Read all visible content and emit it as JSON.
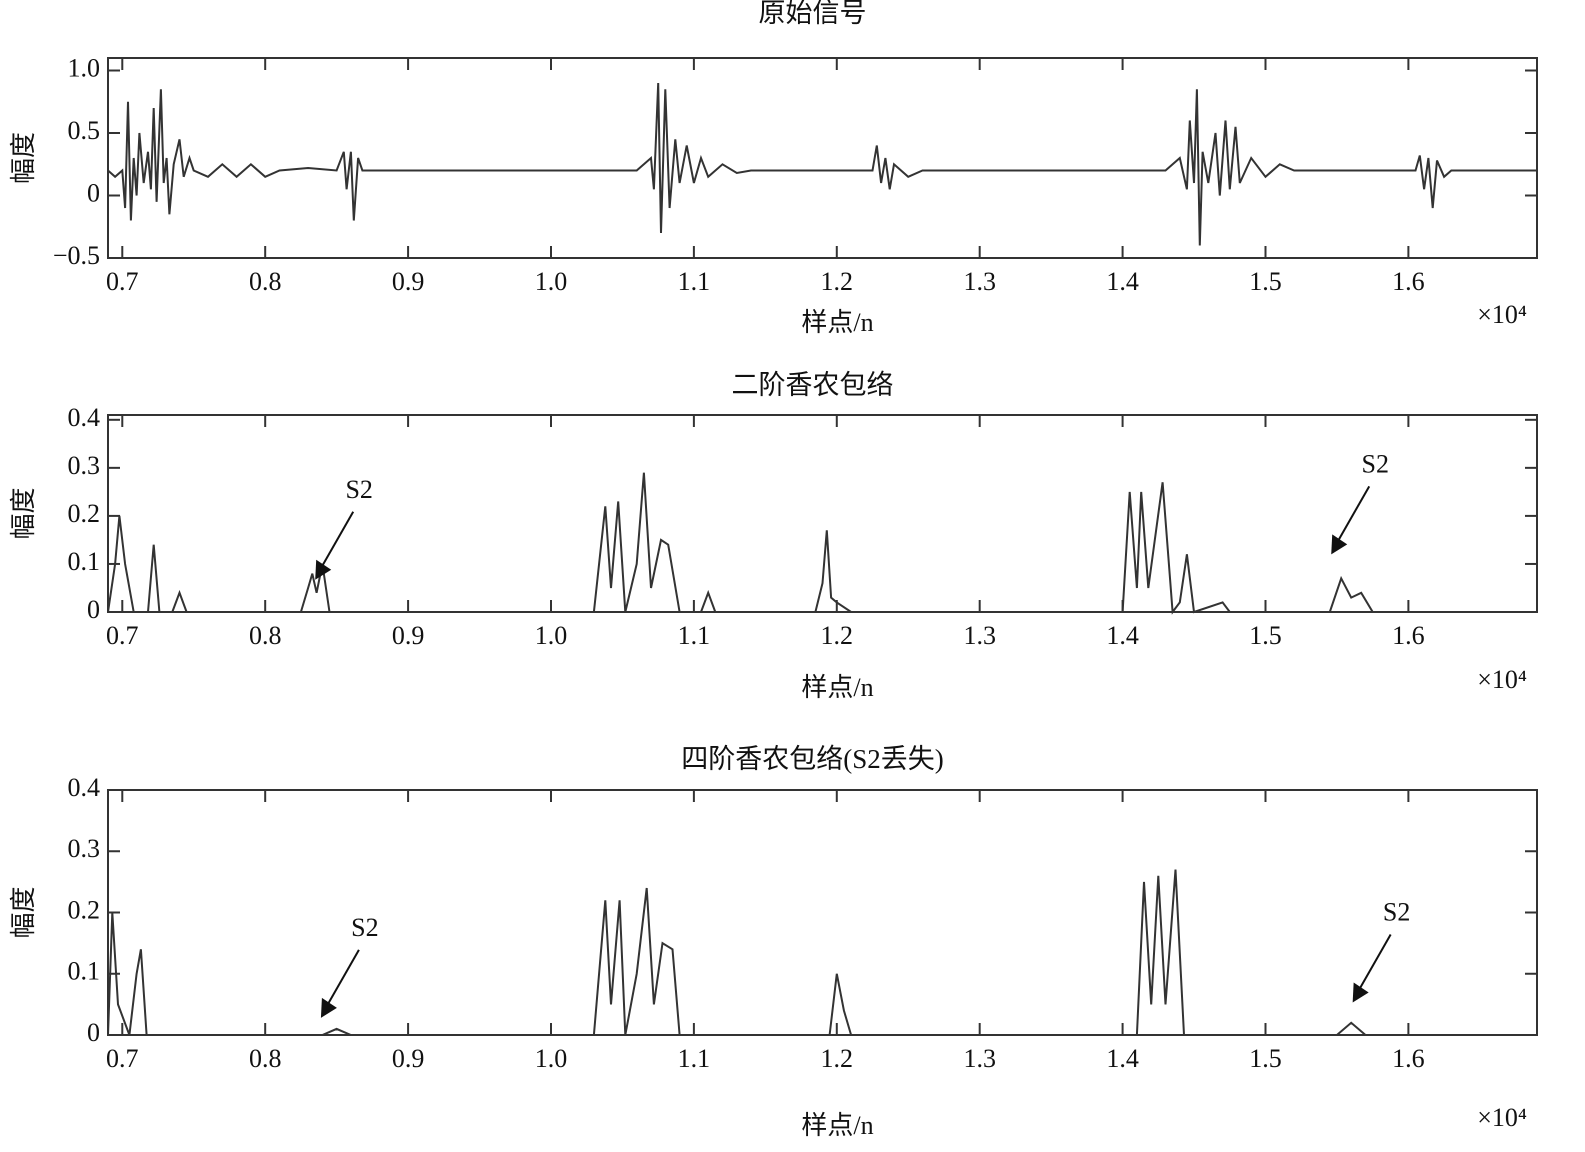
{
  "chart_data": [
    {
      "type": "line",
      "title": "原始信号",
      "xlabel": "样点/n",
      "ylabel": "幅度",
      "x_multiplier_label": "×10⁴",
      "xlim": [
        0.69,
        1.69
      ],
      "ylim": [
        -0.5,
        1.1
      ],
      "xticks": [
        0.7,
        0.8,
        0.9,
        {
          "value": 1,
          "label": "1.0"
        },
        1.1,
        1.2,
        1.3,
        1.4,
        1.5,
        1.6
      ],
      "yticks": [
        {
          "value": 1,
          "label": "1.0"
        },
        0.5,
        0,
        {
          "value": -0.5,
          "label": "−0.5"
        }
      ],
      "x": [
        0.69,
        0.695,
        0.7,
        0.702,
        0.704,
        0.706,
        0.708,
        0.71,
        0.712,
        0.715,
        0.718,
        0.72,
        0.722,
        0.724,
        0.727,
        0.729,
        0.731,
        0.733,
        0.736,
        0.74,
        0.743,
        0.747,
        0.75,
        0.76,
        0.77,
        0.78,
        0.79,
        0.8,
        0.81,
        0.83,
        0.85,
        0.855,
        0.857,
        0.86,
        0.862,
        0.865,
        0.868,
        1.06,
        1.07,
        1.072,
        1.075,
        1.077,
        1.08,
        1.083,
        1.087,
        1.09,
        1.095,
        1.1,
        1.105,
        1.11,
        1.12,
        1.13,
        1.14,
        1.225,
        1.228,
        1.231,
        1.234,
        1.237,
        1.24,
        1.25,
        1.26,
        1.43,
        1.44,
        1.445,
        1.447,
        1.45,
        1.452,
        1.454,
        1.456,
        1.46,
        1.465,
        1.468,
        1.472,
        1.475,
        1.479,
        1.482,
        1.49,
        1.5,
        1.51,
        1.52,
        1.605,
        1.608,
        1.611,
        1.614,
        1.617,
        1.62,
        1.625,
        1.63,
        1.69
      ],
      "series": [
        {
          "color": "#333333",
          "values": [
            0.2,
            0.15,
            0.2,
            -0.1,
            0.75,
            -0.2,
            0.3,
            0,
            0.5,
            0.1,
            0.35,
            0.05,
            0.7,
            -0.05,
            0.85,
            0.1,
            0.3,
            -0.15,
            0.25,
            0.45,
            0.15,
            0.3,
            0.2,
            0.15,
            0.25,
            0.15,
            0.25,
            0.15,
            0.2,
            0.22,
            0.2,
            0.35,
            0.05,
            0.35,
            -0.2,
            0.3,
            0.2,
            0.2,
            0.3,
            0.05,
            0.9,
            -0.3,
            0.85,
            -0.1,
            0.45,
            0.1,
            0.4,
            0.1,
            0.3,
            0.15,
            0.25,
            0.18,
            0.2,
            0.2,
            0.4,
            0.1,
            0.3,
            0.05,
            0.25,
            0.15,
            0.2,
            0.2,
            0.3,
            0.05,
            0.6,
            0.1,
            0.85,
            -0.4,
            0.35,
            0.1,
            0.5,
            0,
            0.6,
            0.05,
            0.55,
            0.1,
            0.3,
            0.15,
            0.25,
            0.2,
            0.2,
            0.32,
            0.05,
            0.3,
            -0.1,
            0.28,
            0.15,
            0.2,
            0.2
          ]
        }
      ]
    },
    {
      "type": "line",
      "title": "二阶香农包络",
      "xlabel": "样点/n",
      "ylabel": "幅度",
      "x_multiplier_label": "×10⁴",
      "xlim": [
        0.69,
        1.69
      ],
      "ylim": [
        0,
        0.41
      ],
      "xticks": [
        0.7,
        0.8,
        0.9,
        {
          "value": 1,
          "label": "1.0"
        },
        1.1,
        1.2,
        1.3,
        1.4,
        1.5,
        1.6
      ],
      "yticks": [
        0,
        0.1,
        0.2,
        0.3,
        0.4
      ],
      "annotations": [
        {
          "text": "S2",
          "x": 0.835,
          "y": 0.067
        },
        {
          "text": "S2",
          "x": 1.546,
          "y": 0.12
        }
      ],
      "x": [
        0.69,
        0.695,
        0.698,
        0.702,
        0.708,
        0.718,
        0.722,
        0.726,
        0.735,
        0.74,
        0.745,
        0.825,
        0.83,
        0.833,
        0.836,
        0.84,
        0.845,
        1.03,
        1.038,
        1.042,
        1.047,
        1.052,
        1.06,
        1.065,
        1.07,
        1.077,
        1.082,
        1.09,
        1.105,
        1.11,
        1.115,
        1.185,
        1.19,
        1.193,
        1.196,
        1.2,
        1.21,
        1.4,
        1.405,
        1.41,
        1.413,
        1.418,
        1.428,
        1.435,
        1.44,
        1.445,
        1.45,
        1.47,
        1.475,
        1.545,
        1.553,
        1.56,
        1.567,
        1.575,
        1.6
      ],
      "series": [
        {
          "color": "#333333",
          "values": [
            0,
            0.1,
            0.2,
            0.1,
            0,
            0,
            0.14,
            0,
            0,
            0.04,
            0,
            0,
            0.05,
            0.08,
            0.04,
            0.1,
            0,
            0,
            0.22,
            0.05,
            0.23,
            0,
            0.1,
            0.29,
            0.05,
            0.15,
            0.14,
            0,
            0,
            0.04,
            0,
            0,
            0.06,
            0.17,
            0.03,
            0.02,
            0,
            0,
            0.25,
            0.05,
            0.25,
            0.05,
            0.27,
            0,
            0.02,
            0.12,
            0,
            0.02,
            0,
            0,
            0.07,
            0.03,
            0.04,
            0,
            0
          ]
        }
      ]
    },
    {
      "type": "line",
      "title": "四阶香农包络(S2丢失)",
      "xlabel": "样点/n",
      "ylabel": "幅度",
      "x_multiplier_label": "×10⁴",
      "xlim": [
        0.69,
        1.69
      ],
      "ylim": [
        0,
        0.4
      ],
      "xticks": [
        0.7,
        0.8,
        0.9,
        {
          "value": 1,
          "label": "1.0"
        },
        1.1,
        1.2,
        1.3,
        1.4,
        1.5,
        1.6
      ],
      "yticks": [
        0,
        0.1,
        0.2,
        0.3,
        0.4
      ],
      "annotations": [
        {
          "text": "S2",
          "x": 0.839,
          "y": 0.028
        },
        {
          "text": "S2",
          "x": 1.561,
          "y": 0.053
        }
      ],
      "x": [
        0.69,
        0.693,
        0.697,
        0.705,
        0.71,
        0.713,
        0.717,
        0.84,
        0.85,
        0.86,
        1.03,
        1.038,
        1.042,
        1.048,
        1.052,
        1.06,
        1.067,
        1.072,
        1.078,
        1.085,
        1.09,
        1.195,
        1.2,
        1.205,
        1.21,
        1.41,
        1.415,
        1.42,
        1.425,
        1.43,
        1.437,
        1.443,
        1.55,
        1.56,
        1.57,
        1.62
      ],
      "series": [
        {
          "color": "#333333",
          "values": [
            0,
            0.2,
            0.05,
            0,
            0.1,
            0.14,
            0,
            0,
            0.01,
            0,
            0,
            0.22,
            0.05,
            0.22,
            0,
            0.1,
            0.24,
            0.05,
            0.15,
            0.14,
            0,
            0,
            0.1,
            0.04,
            0,
            0,
            0.25,
            0.05,
            0.26,
            0.05,
            0.27,
            0,
            0,
            0.02,
            0,
            0
          ]
        }
      ]
    }
  ]
}
